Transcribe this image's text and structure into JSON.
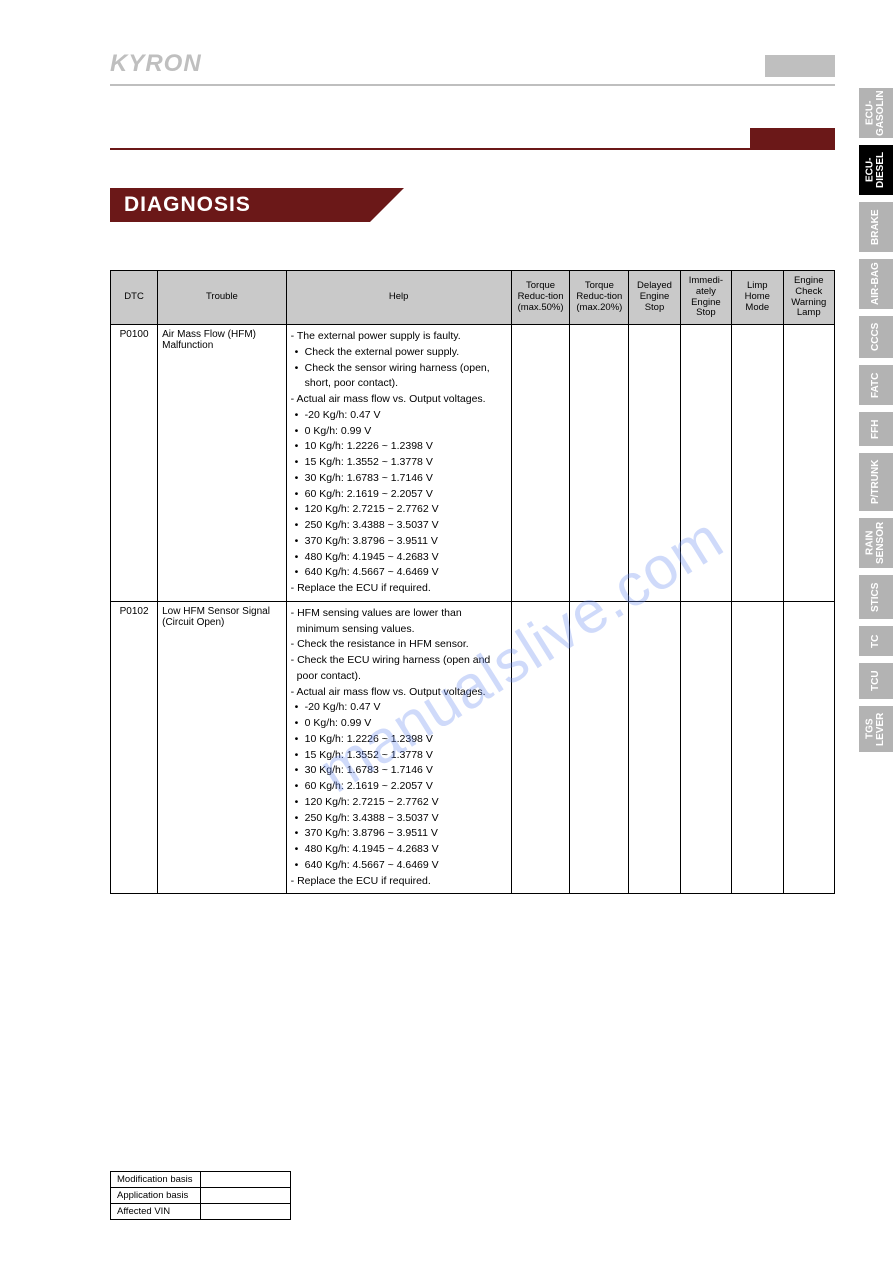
{
  "brand": "KYRON",
  "section_title": "DIAGNOSIS",
  "watermark": "manualslive.com",
  "colors": {
    "maroon": "#6b1818",
    "gray_header": "#c9c9c9",
    "tab_gray": "#b3b3b3",
    "tab_active": "#000000",
    "brand_gray": "#bfbfbf"
  },
  "tabs": [
    {
      "label": "ECU-\nGASOLIN",
      "active": false
    },
    {
      "label": "ECU-\nDIESEL",
      "active": true
    },
    {
      "label": "BRAKE",
      "active": false
    },
    {
      "label": "AIR-BAG",
      "active": false
    },
    {
      "label": "CCCS",
      "active": false
    },
    {
      "label": "FATC",
      "active": false
    },
    {
      "label": "FFH",
      "active": false
    },
    {
      "label": "P/TRUNK",
      "active": false
    },
    {
      "label": "RAIN\nSENSOR",
      "active": false
    },
    {
      "label": "STICS",
      "active": false
    },
    {
      "label": "TC",
      "active": false
    },
    {
      "label": "TCU",
      "active": false
    },
    {
      "label": "TGS\nLEVER",
      "active": false
    }
  ],
  "table": {
    "headers": [
      "DTC",
      "Trouble",
      "Help",
      "Torque Reduc-tion (max.50%)",
      "Torque Reduc-tion (max.20%)",
      "Delayed Engine Stop",
      "Immedi-ately Engine Stop",
      "Limp Home Mode",
      "Engine Check Warning Lamp"
    ],
    "rows": [
      {
        "dtc": "P0100",
        "trouble": "Air Mass Flow (HFM) Malfunction",
        "help": [
          {
            "t": "lead",
            "v": "- The external power supply is faulty."
          },
          {
            "t": "bul",
            "v": "Check the external power supply."
          },
          {
            "t": "bul",
            "v": "Check the sensor wiring harness (open, short, poor contact)."
          },
          {
            "t": "lead",
            "v": "- Actual air mass flow vs. Output voltages."
          },
          {
            "t": "bul",
            "v": "-20 Kg/h: 0.47 V"
          },
          {
            "t": "bul",
            "v": "0 Kg/h: 0.99 V"
          },
          {
            "t": "bul",
            "v": "10 Kg/h: 1.2226 ~ 1.2398 V"
          },
          {
            "t": "bul",
            "v": "15 Kg/h: 1.3552 ~ 1.3778 V"
          },
          {
            "t": "bul",
            "v": "30 Kg/h: 1.6783 ~ 1.7146 V"
          },
          {
            "t": "bul",
            "v": "60 Kg/h: 2.1619 ~ 2.2057 V"
          },
          {
            "t": "bul",
            "v": "120 Kg/h: 2.7215 ~ 2.7762 V"
          },
          {
            "t": "bul",
            "v": "250 Kg/h: 3.4388 ~ 3.5037 V"
          },
          {
            "t": "bul",
            "v": "370 Kg/h: 3.8796 ~ 3.9511 V"
          },
          {
            "t": "bul",
            "v": "480 Kg/h: 4.1945 ~ 4.2683 V"
          },
          {
            "t": "bul",
            "v": "640 Kg/h: 4.5667 ~ 4.6469 V"
          },
          {
            "t": "lead",
            "v": "- Replace the ECU if required."
          }
        ]
      },
      {
        "dtc": "P0102",
        "trouble": "Low HFM Sensor Signal (Circuit Open)",
        "help": [
          {
            "t": "lead",
            "v": "- HFM sensing values are lower than minimum sensing values."
          },
          {
            "t": "lead",
            "v": "- Check the resistance in HFM sensor."
          },
          {
            "t": "lead",
            "v": "- Check the ECU wiring harness (open and poor contact)."
          },
          {
            "t": "lead",
            "v": "- Actual air mass flow vs. Output voltages."
          },
          {
            "t": "bul",
            "v": "-20 Kg/h: 0.47 V"
          },
          {
            "t": "bul",
            "v": "0 Kg/h: 0.99 V"
          },
          {
            "t": "bul",
            "v": "10 Kg/h: 1.2226 ~ 1.2398 V"
          },
          {
            "t": "bul",
            "v": "15 Kg/h: 1.3552 ~ 1.3778 V"
          },
          {
            "t": "bul",
            "v": "30 Kg/h: 1.6783 ~ 1.7146 V"
          },
          {
            "t": "bul",
            "v": "60 Kg/h: 2.1619 ~ 2.2057 V"
          },
          {
            "t": "bul",
            "v": "120 Kg/h: 2.7215 ~ 2.7762 V"
          },
          {
            "t": "bul",
            "v": "250 Kg/h: 3.4388 ~ 3.5037 V"
          },
          {
            "t": "bul",
            "v": "370 Kg/h: 3.8796 ~ 3.9511 V"
          },
          {
            "t": "bul",
            "v": "480 Kg/h: 4.1945 ~ 4.2683 V"
          },
          {
            "t": "bul",
            "v": "640 Kg/h: 4.5667 ~ 4.6469 V"
          },
          {
            "t": "lead",
            "v": "- Replace the ECU if required."
          }
        ]
      }
    ]
  },
  "footer": {
    "rows": [
      "Modification basis",
      "Application basis",
      "Affected VIN"
    ]
  }
}
